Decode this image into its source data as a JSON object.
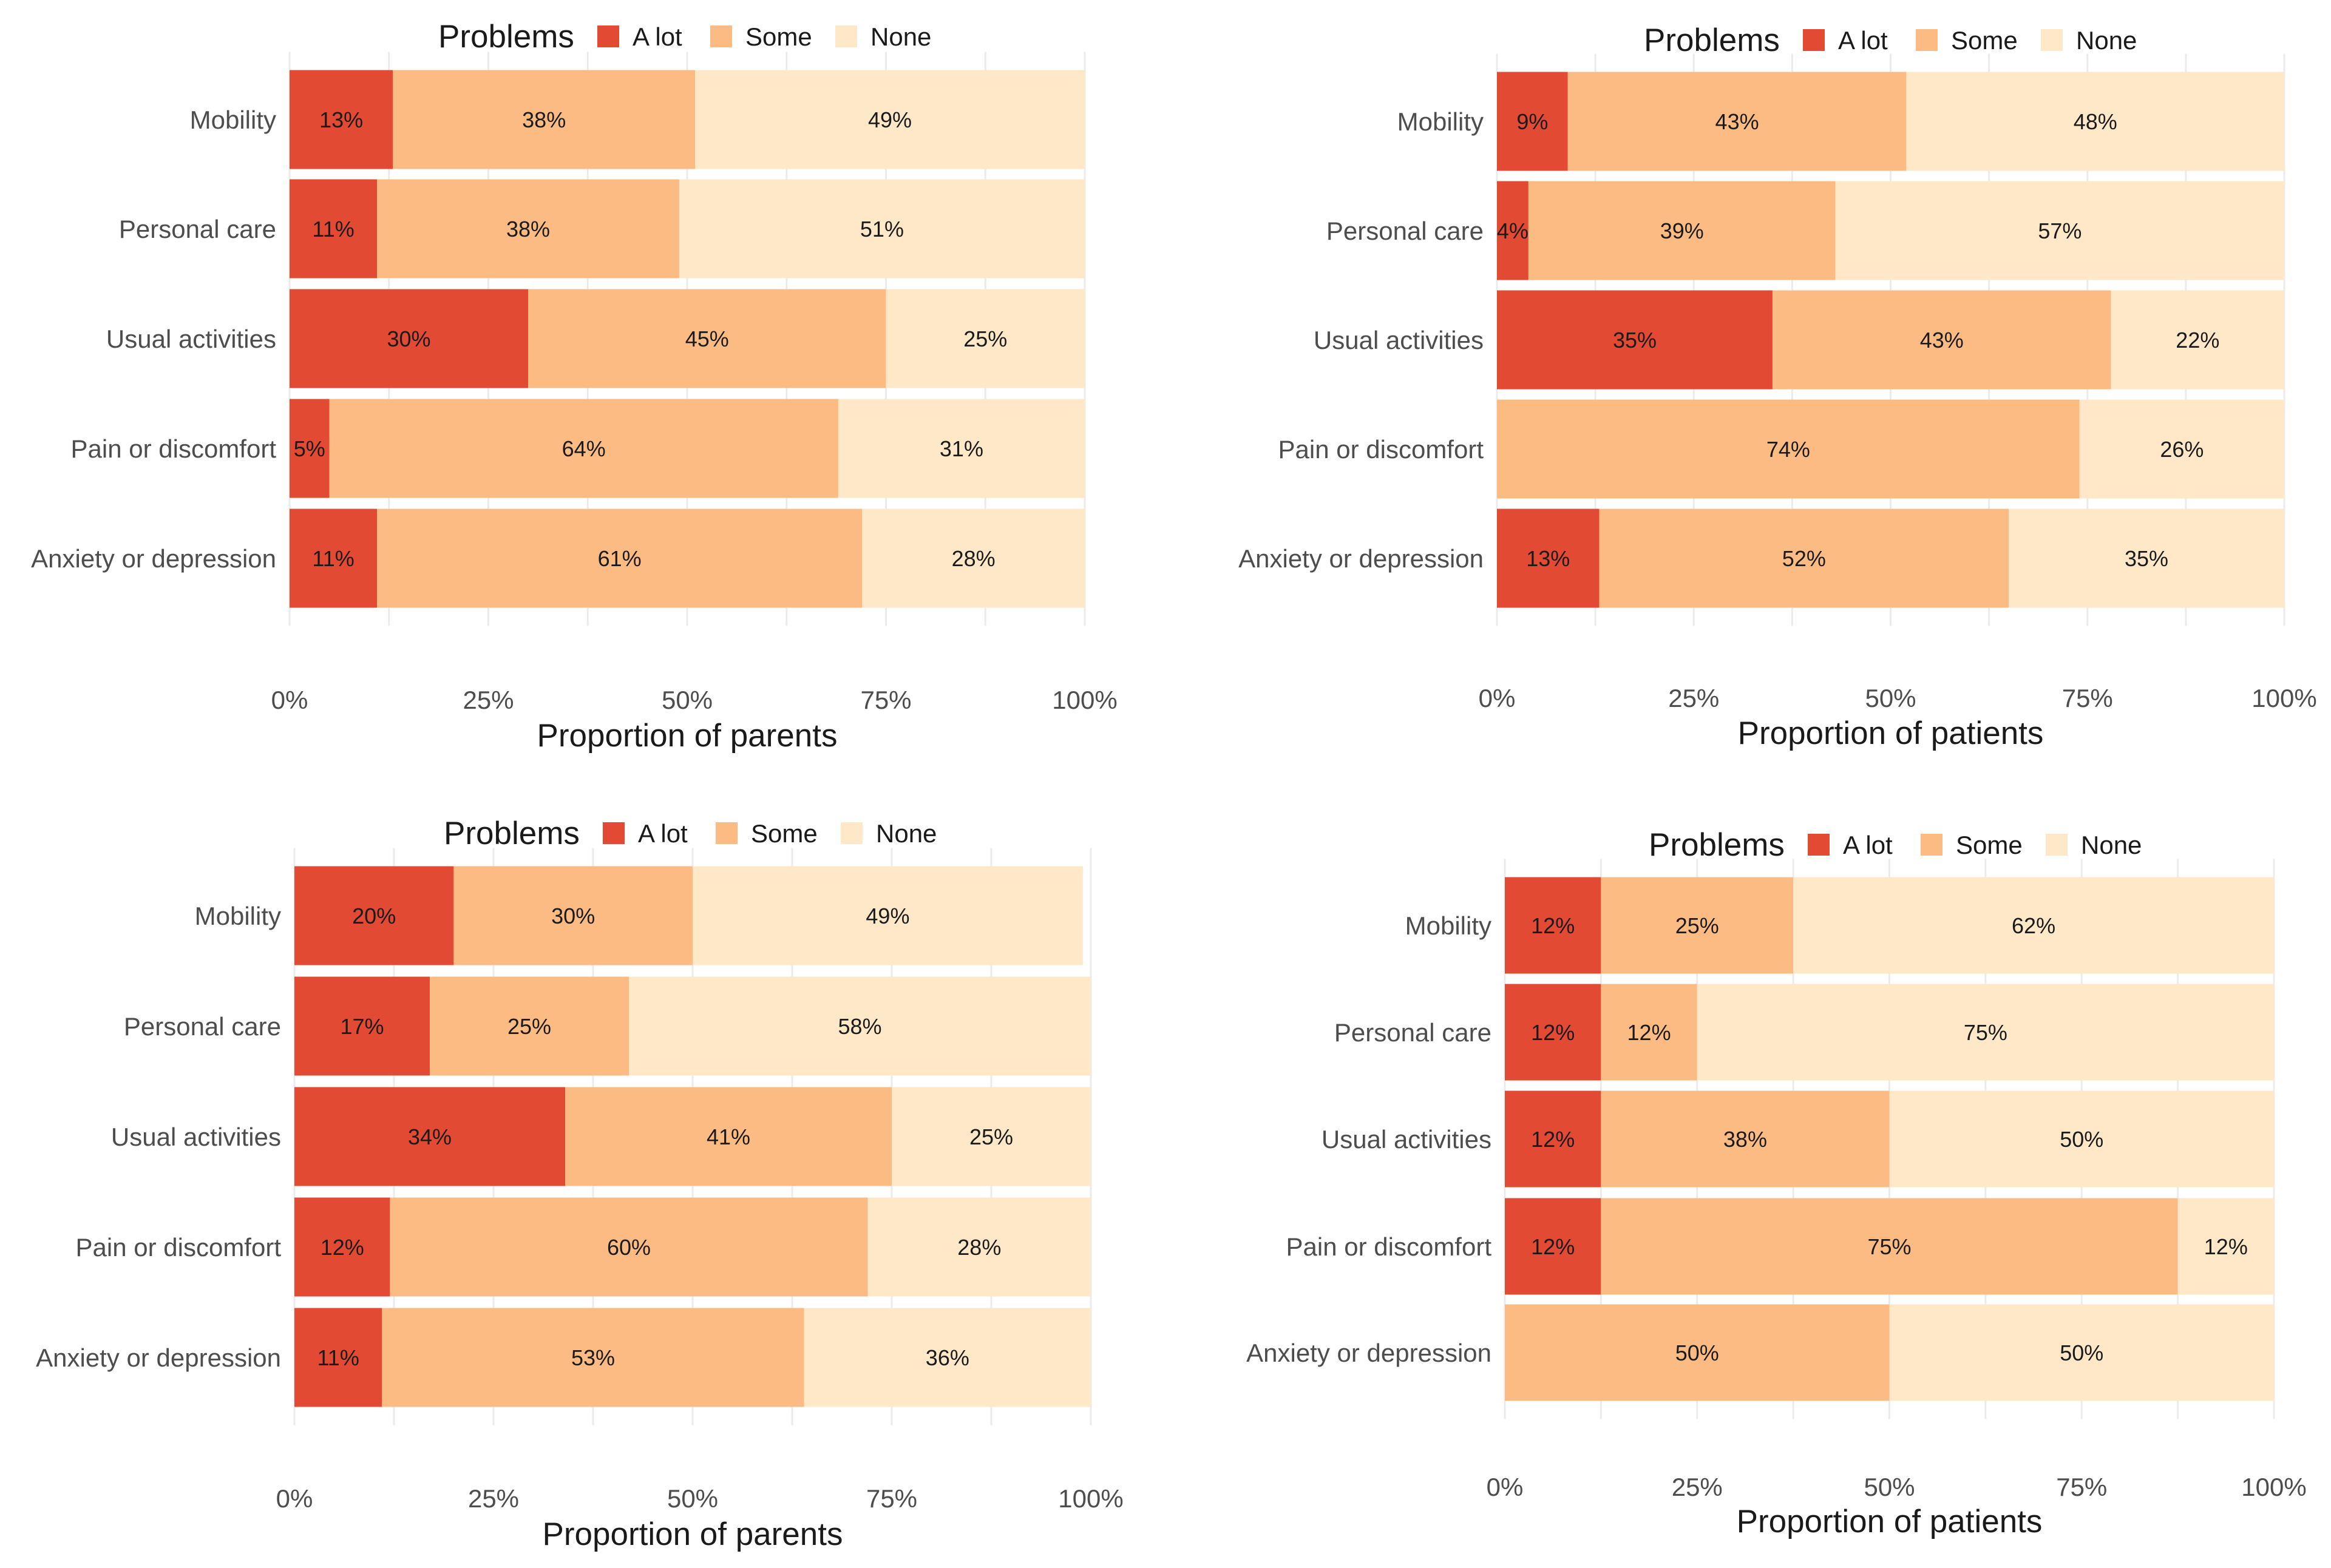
{
  "chart_data": [
    {
      "type": "bar",
      "orientation": "horizontal",
      "stacked": true,
      "legend_title": "Problems",
      "legend_position": "top",
      "xlabel": "Proportion of parents",
      "xlim": [
        0,
        100
      ],
      "x_ticks": [
        "0%",
        "25%",
        "50%",
        "75%",
        "100%"
      ],
      "categories": [
        "Mobility",
        "Personal care",
        "Usual activities",
        "Pain or discomfort",
        "Anxiety or depression"
      ],
      "series": [
        {
          "name": "A lot",
          "color": "#e34a33",
          "values": [
            13,
            11,
            30,
            5,
            11
          ],
          "labels": [
            "13%",
            "11%",
            "30%",
            "5%",
            "11%"
          ]
        },
        {
          "name": "Some",
          "color": "#fdbb84",
          "values": [
            38,
            38,
            45,
            64,
            61
          ],
          "labels": [
            "38%",
            "38%",
            "45%",
            "64%",
            "61%"
          ]
        },
        {
          "name": "None",
          "color": "#fee8c8",
          "values": [
            49,
            51,
            25,
            31,
            28
          ],
          "labels": [
            "49%",
            "51%",
            "25%",
            "31%",
            "28%"
          ]
        }
      ]
    },
    {
      "type": "bar",
      "orientation": "horizontal",
      "stacked": true,
      "legend_title": "Problems",
      "legend_position": "top",
      "xlabel": "Proportion of patients",
      "xlim": [
        0,
        100
      ],
      "x_ticks": [
        "0%",
        "25%",
        "50%",
        "75%",
        "100%"
      ],
      "categories": [
        "Mobility",
        "Personal care",
        "Usual activities",
        "Pain or discomfort",
        "Anxiety or depression"
      ],
      "series": [
        {
          "name": "A lot",
          "color": "#e34a33",
          "values": [
            9,
            4,
            35,
            0,
            13
          ],
          "labels": [
            "9%",
            "4%",
            "35%",
            "",
            "13%"
          ]
        },
        {
          "name": "Some",
          "color": "#fdbb84",
          "values": [
            43,
            39,
            43,
            74,
            52
          ],
          "labels": [
            "43%",
            "39%",
            "43%",
            "74%",
            "52%"
          ]
        },
        {
          "name": "None",
          "color": "#fee8c8",
          "values": [
            48,
            57,
            22,
            26,
            35
          ],
          "labels": [
            "48%",
            "57%",
            "22%",
            "26%",
            "35%"
          ]
        }
      ]
    },
    {
      "type": "bar",
      "orientation": "horizontal",
      "stacked": true,
      "legend_title": "Problems",
      "legend_position": "top",
      "xlabel": "Proportion of parents",
      "xlim": [
        0,
        100
      ],
      "x_ticks": [
        "0%",
        "25%",
        "50%",
        "75%",
        "100%"
      ],
      "categories": [
        "Mobility",
        "Personal care",
        "Usual activities",
        "Pain or discomfort",
        "Anxiety or depression"
      ],
      "series": [
        {
          "name": "A lot",
          "color": "#e34a33",
          "values": [
            20,
            17,
            34,
            12,
            11
          ],
          "labels": [
            "20%",
            "17%",
            "34%",
            "12%",
            "11%"
          ]
        },
        {
          "name": "Some",
          "color": "#fdbb84",
          "values": [
            30,
            25,
            41,
            60,
            53
          ],
          "labels": [
            "30%",
            "25%",
            "41%",
            "60%",
            "53%"
          ]
        },
        {
          "name": "None",
          "color": "#fee8c8",
          "values": [
            49,
            58,
            25,
            28,
            36
          ],
          "labels": [
            "49%",
            "58%",
            "25%",
            "28%",
            "36%"
          ]
        }
      ]
    },
    {
      "type": "bar",
      "orientation": "horizontal",
      "stacked": true,
      "legend_title": "Problems",
      "legend_position": "top",
      "xlabel": "Proportion of patients",
      "xlim": [
        0,
        100
      ],
      "x_ticks": [
        "0%",
        "25%",
        "50%",
        "75%",
        "100%"
      ],
      "categories": [
        "Mobility",
        "Personal care",
        "Usual activities",
        "Pain or discomfort",
        "Anxiety or depression"
      ],
      "series": [
        {
          "name": "A lot",
          "color": "#e34a33",
          "values": [
            12.5,
            12.5,
            12.5,
            12.5,
            0
          ],
          "labels": [
            "12%",
            "12%",
            "12%",
            "12%",
            ""
          ]
        },
        {
          "name": "Some",
          "color": "#fdbb84",
          "values": [
            25,
            12.5,
            37.5,
            75,
            50
          ],
          "labels": [
            "25%",
            "12%",
            "38%",
            "75%",
            "50%"
          ]
        },
        {
          "name": "None",
          "color": "#fee8c8",
          "values": [
            62.5,
            75,
            50,
            12.5,
            50
          ],
          "labels": [
            "62%",
            "75%",
            "50%",
            "12%",
            "50%"
          ]
        }
      ]
    }
  ]
}
